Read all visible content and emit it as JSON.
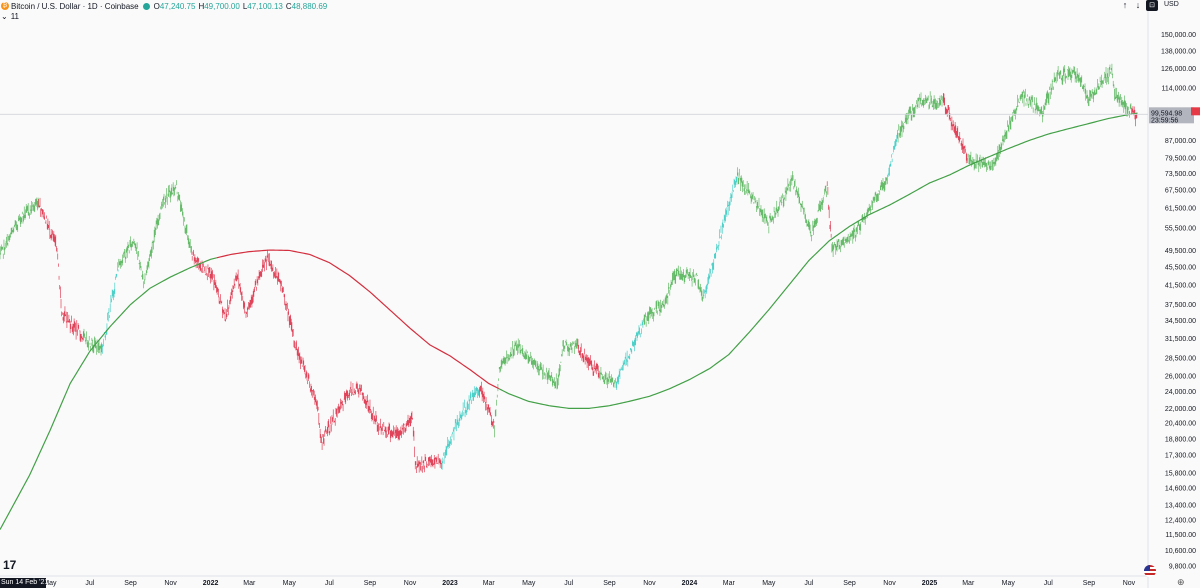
{
  "header": {
    "coin_glyph": "₿",
    "symbol": "Bitcoin / U.S. Dollar · 1D · Coinbase",
    "ohlc": [
      {
        "k": "O",
        "v": "47,240.75"
      },
      {
        "k": "H",
        "v": "49,700.00"
      },
      {
        "k": "L",
        "v": "47,100.13"
      },
      {
        "k": "C",
        "v": "48,880.69"
      }
    ],
    "indicator_toggle": "⌄",
    "indicator_count": "11"
  },
  "toolbar": {
    "up_arrow": "↑",
    "down_arrow": "↓",
    "box_glyph": "⊡",
    "currency": "USD"
  },
  "logo": "17",
  "cursor_date": "Sun 14 Feb '21",
  "settings_glyph": "⊕",
  "price_label": {
    "value": "99,594.98",
    "countdown": "23:59:56"
  },
  "colors": {
    "green": "#66bb6a",
    "red": "#e0445a",
    "cyan": "#4dd0c8",
    "ma_green": "#43a047",
    "ma_red": "#d32f3f"
  },
  "chart_data": {
    "type": "line",
    "y_scale": "log",
    "x_range": [
      "2021-02-14",
      "2025-11-30"
    ],
    "ylim": [
      9300,
      160000
    ],
    "y_ticks": [
      "150,000.00",
      "138,000.00",
      "126,000.00",
      "114,000.00",
      "99,594.98",
      "87,000.00",
      "79,500.00",
      "73,500.00",
      "67,500.00",
      "61,500.00",
      "55,500.00",
      "49,500.00",
      "45,500.00",
      "41,500.00",
      "37,500.00",
      "34,500.00",
      "31,500.00",
      "28,500.00",
      "26,000.00",
      "24,000.00",
      "22,000.00",
      "20,400.00",
      "18,800.00",
      "17,300.00",
      "15,800.00",
      "14,600.00",
      "13,400.00",
      "12,400.00",
      "11,500.00",
      "10,600.00",
      "9,800.00"
    ],
    "x_ticks": [
      {
        "label": "May",
        "date": "2021-05-01"
      },
      {
        "label": "Jul",
        "date": "2021-07-01"
      },
      {
        "label": "Sep",
        "date": "2021-09-01"
      },
      {
        "label": "Nov",
        "date": "2021-11-01"
      },
      {
        "label": "2022",
        "date": "2022-01-01",
        "bold": true
      },
      {
        "label": "Mar",
        "date": "2022-03-01"
      },
      {
        "label": "May",
        "date": "2022-05-01"
      },
      {
        "label": "Jul",
        "date": "2022-07-01"
      },
      {
        "label": "Sep",
        "date": "2022-09-01"
      },
      {
        "label": "Nov",
        "date": "2022-11-01"
      },
      {
        "label": "2023",
        "date": "2023-01-01",
        "bold": true
      },
      {
        "label": "Mar",
        "date": "2023-03-01"
      },
      {
        "label": "May",
        "date": "2023-05-01"
      },
      {
        "label": "Jul",
        "date": "2023-07-01"
      },
      {
        "label": "Sep",
        "date": "2023-09-01"
      },
      {
        "label": "Nov",
        "date": "2023-11-01"
      },
      {
        "label": "2024",
        "date": "2024-01-01",
        "bold": true
      },
      {
        "label": "Mar",
        "date": "2024-03-01"
      },
      {
        "label": "May",
        "date": "2024-05-01"
      },
      {
        "label": "Jul",
        "date": "2024-07-01"
      },
      {
        "label": "Sep",
        "date": "2024-09-01"
      },
      {
        "label": "Nov",
        "date": "2024-11-01"
      },
      {
        "label": "2025",
        "date": "2025-01-01",
        "bold": true
      },
      {
        "label": "Mar",
        "date": "2025-03-01"
      },
      {
        "label": "May",
        "date": "2025-05-01"
      },
      {
        "label": "Jul",
        "date": "2025-07-01"
      },
      {
        "label": "Sep",
        "date": "2025-09-01"
      },
      {
        "label": "Nov",
        "date": "2025-11-01"
      }
    ],
    "price_series": [
      [
        "2021-02-14",
        48000,
        "green"
      ],
      [
        "2021-03-15",
        58000,
        "green"
      ],
      [
        "2021-04-14",
        63500,
        "green"
      ],
      [
        "2021-05-12",
        50000,
        "red"
      ],
      [
        "2021-05-19",
        36000,
        "red"
      ],
      [
        "2021-06-22",
        31500,
        "red"
      ],
      [
        "2021-07-20",
        30000,
        "green"
      ],
      [
        "2021-08-14",
        46000,
        "cyan"
      ],
      [
        "2021-09-07",
        52500,
        "green"
      ],
      [
        "2021-09-21",
        42000,
        "green"
      ],
      [
        "2021-10-20",
        64000,
        "green"
      ],
      [
        "2021-11-10",
        68500,
        "green"
      ],
      [
        "2021-12-04",
        48000,
        "green"
      ],
      [
        "2022-01-05",
        43000,
        "red"
      ],
      [
        "2022-01-24",
        35000,
        "red"
      ],
      [
        "2022-02-10",
        44000,
        "red"
      ],
      [
        "2022-02-24",
        36000,
        "red"
      ],
      [
        "2022-03-28",
        47500,
        "red"
      ],
      [
        "2022-04-20",
        41000,
        "red"
      ],
      [
        "2022-05-10",
        30500,
        "red"
      ],
      [
        "2022-06-13",
        22500,
        "red"
      ],
      [
        "2022-06-18",
        18500,
        "red"
      ],
      [
        "2022-07-30",
        23800,
        "red"
      ],
      [
        "2022-08-14",
        24500,
        "red"
      ],
      [
        "2022-09-15",
        20000,
        "red"
      ],
      [
        "2022-10-15",
        19200,
        "red"
      ],
      [
        "2022-11-05",
        21200,
        "red"
      ],
      [
        "2022-11-09",
        16500,
        "red"
      ],
      [
        "2022-12-20",
        16800,
        "red"
      ],
      [
        "2023-01-14",
        20800,
        "cyan"
      ],
      [
        "2023-02-15",
        24500,
        "cyan"
      ],
      [
        "2023-03-10",
        20000,
        "red"
      ],
      [
        "2023-03-17",
        27000,
        "green"
      ],
      [
        "2023-04-14",
        30400,
        "green"
      ],
      [
        "2023-05-15",
        27000,
        "green"
      ],
      [
        "2023-06-15",
        25000,
        "green"
      ],
      [
        "2023-06-22",
        30500,
        "green"
      ],
      [
        "2023-07-15",
        30000,
        "green"
      ],
      [
        "2023-08-17",
        26000,
        "red"
      ],
      [
        "2023-09-11",
        25000,
        "green"
      ],
      [
        "2023-10-24",
        34500,
        "cyan"
      ],
      [
        "2023-11-25",
        37800,
        "green"
      ],
      [
        "2023-12-08",
        44000,
        "green"
      ],
      [
        "2024-01-12",
        43000,
        "green"
      ],
      [
        "2024-01-23",
        39000,
        "green"
      ],
      [
        "2024-02-15",
        52000,
        "cyan"
      ],
      [
        "2024-03-14",
        73000,
        "cyan"
      ],
      [
        "2024-05-01",
        57000,
        "green"
      ],
      [
        "2024-06-06",
        71000,
        "green"
      ],
      [
        "2024-07-05",
        54000,
        "green"
      ],
      [
        "2024-07-29",
        69000,
        "green"
      ],
      [
        "2024-08-05",
        50000,
        "red"
      ],
      [
        "2024-09-06",
        53000,
        "green"
      ],
      [
        "2024-10-29",
        72000,
        "green"
      ],
      [
        "2024-11-13",
        90000,
        "cyan"
      ],
      [
        "2024-12-17",
        107000,
        "green"
      ],
      [
        "2025-01-22",
        106000,
        "green"
      ],
      [
        "2025-02-28",
        80000,
        "red"
      ],
      [
        "2025-04-07",
        76000,
        "green"
      ],
      [
        "2025-05-21",
        110000,
        "green"
      ],
      [
        "2025-06-22",
        101000,
        "green"
      ],
      [
        "2025-07-14",
        122000,
        "green"
      ],
      [
        "2025-08-14",
        123000,
        "green"
      ],
      [
        "2025-09-01",
        108000,
        "green"
      ],
      [
        "2025-10-06",
        125000,
        "green"
      ],
      [
        "2025-10-10",
        110000,
        "green"
      ],
      [
        "2025-11-05",
        101000,
        "green"
      ],
      [
        "2025-11-14",
        97000,
        "red"
      ]
    ],
    "moving_average": [
      [
        "2021-02-14",
        11800
      ],
      [
        "2021-03-31",
        15600
      ],
      [
        "2021-05-01",
        19600
      ],
      [
        "2021-06-01",
        25000
      ],
      [
        "2021-07-01",
        29500
      ],
      [
        "2021-08-01",
        33500
      ],
      [
        "2021-09-01",
        37500
      ],
      [
        "2021-10-01",
        40800
      ],
      [
        "2021-11-01",
        43200
      ],
      [
        "2021-12-01",
        45300
      ],
      [
        "2022-01-01",
        47300
      ],
      [
        "2022-02-01",
        48500
      ],
      [
        "2022-03-01",
        49200
      ],
      [
        "2022-04-01",
        49600
      ],
      [
        "2022-05-01",
        49500
      ],
      [
        "2022-06-01",
        48500
      ],
      [
        "2022-07-01",
        46500
      ],
      [
        "2022-08-01",
        43500
      ],
      [
        "2022-09-01",
        40000
      ],
      [
        "2022-10-01",
        36500
      ],
      [
        "2022-11-01",
        33200
      ],
      [
        "2022-12-01",
        30500
      ],
      [
        "2023-01-01",
        28800
      ],
      [
        "2023-02-01",
        26800
      ],
      [
        "2023-03-01",
        25000
      ],
      [
        "2023-04-01",
        23700
      ],
      [
        "2023-05-01",
        22800
      ],
      [
        "2023-06-01",
        22300
      ],
      [
        "2023-07-01",
        22000
      ],
      [
        "2023-08-01",
        22000
      ],
      [
        "2023-09-01",
        22300
      ],
      [
        "2023-10-01",
        22800
      ],
      [
        "2023-11-01",
        23400
      ],
      [
        "2023-12-01",
        24300
      ],
      [
        "2024-01-01",
        25500
      ],
      [
        "2024-02-01",
        27000
      ],
      [
        "2024-03-01",
        29000
      ],
      [
        "2024-04-01",
        32500
      ],
      [
        "2024-05-01",
        36500
      ],
      [
        "2024-06-01",
        41500
      ],
      [
        "2024-07-01",
        47000
      ],
      [
        "2024-08-01",
        52000
      ],
      [
        "2024-09-01",
        56000
      ],
      [
        "2024-10-01",
        59500
      ],
      [
        "2024-11-01",
        62500
      ],
      [
        "2024-12-01",
        66000
      ],
      [
        "2025-01-01",
        70000
      ],
      [
        "2025-02-01",
        73000
      ],
      [
        "2025-03-01",
        76500
      ],
      [
        "2025-04-01",
        80000
      ],
      [
        "2025-05-01",
        83500
      ],
      [
        "2025-06-01",
        87000
      ],
      [
        "2025-07-01",
        90000
      ],
      [
        "2025-08-01",
        92500
      ],
      [
        "2025-09-01",
        95000
      ],
      [
        "2025-10-01",
        97500
      ],
      [
        "2025-11-01",
        99500
      ],
      [
        "2025-11-14",
        100200
      ]
    ],
    "ma_color_switch_dates": [
      "2022-01-10",
      "2023-03-15"
    ]
  }
}
